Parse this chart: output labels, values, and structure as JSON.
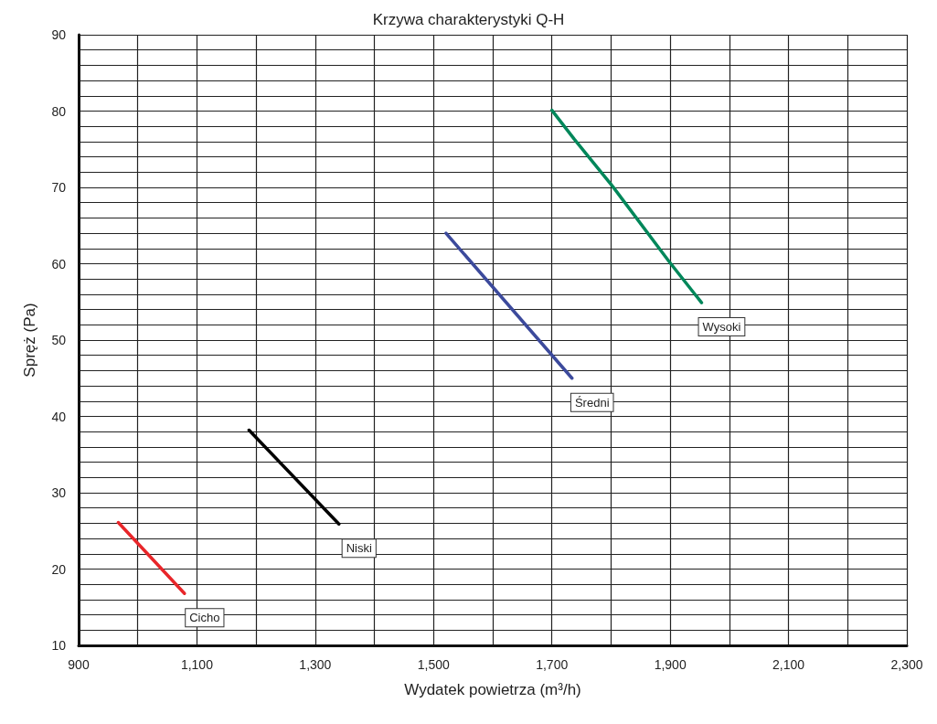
{
  "chart_data": {
    "type": "line",
    "title": "Krzywa charakterystyki Q-H",
    "xlabel": "Wydatek powietrza (m³/h)",
    "ylabel": "Spręż (Pa)",
    "xlim": [
      900,
      2300
    ],
    "ylim": [
      10,
      90
    ],
    "xticks": [
      900,
      {
        "value": 1000,
        "label": null
      },
      {
        "value": 1100,
        "label": "1,100"
      },
      {
        "value": 1200,
        "label": null
      },
      {
        "value": 1300,
        "label": "1,300"
      },
      {
        "value": 1400,
        "label": null
      },
      {
        "value": 1500,
        "label": "1,500"
      },
      {
        "value": 1600,
        "label": null
      },
      {
        "value": 1700,
        "label": "1,700"
      },
      {
        "value": 1800,
        "label": null
      },
      {
        "value": 1900,
        "label": "1,900"
      },
      {
        "value": 2000,
        "label": null
      },
      {
        "value": 2100,
        "label": "2,100"
      },
      {
        "value": 2200,
        "label": null
      },
      {
        "value": 2300,
        "label": "2,300"
      }
    ],
    "yticks": [
      10,
      {
        "value": 12,
        "label": null
      },
      {
        "value": 14,
        "label": null
      },
      {
        "value": 16,
        "label": null
      },
      {
        "value": 18,
        "label": null
      },
      20,
      {
        "value": 22,
        "label": null
      },
      {
        "value": 24,
        "label": null
      },
      {
        "value": 26,
        "label": null
      },
      {
        "value": 28,
        "label": null
      },
      30,
      {
        "value": 32,
        "label": null
      },
      {
        "value": 34,
        "label": null
      },
      {
        "value": 36,
        "label": null
      },
      {
        "value": 38,
        "label": null
      },
      40,
      {
        "value": 42,
        "label": null
      },
      {
        "value": 44,
        "label": null
      },
      {
        "value": 46,
        "label": null
      },
      {
        "value": 48,
        "label": null
      },
      50,
      {
        "value": 52,
        "label": null
      },
      {
        "value": 54,
        "label": null
      },
      {
        "value": 56,
        "label": null
      },
      {
        "value": 58,
        "label": null
      },
      60,
      {
        "value": 62,
        "label": null
      },
      {
        "value": 64,
        "label": null
      },
      {
        "value": 66,
        "label": null
      },
      {
        "value": 68,
        "label": null
      },
      70,
      {
        "value": 72,
        "label": null
      },
      {
        "value": 74,
        "label": null
      },
      {
        "value": 76,
        "label": null
      },
      {
        "value": 78,
        "label": null
      },
      80,
      {
        "value": 82,
        "label": null
      },
      {
        "value": 84,
        "label": null
      },
      {
        "value": 86,
        "label": null
      },
      {
        "value": 88,
        "label": null
      },
      90
    ],
    "grid": true,
    "legend": false,
    "marker": "none",
    "line_style": "solid",
    "series": [
      {
        "name": "Cicho",
        "color": "#e8262a",
        "x": [
          967,
          1079
        ],
        "values": [
          26.1,
          16.8
        ]
      },
      {
        "name": "Niski",
        "color": "#000000",
        "x": [
          1188,
          1340
        ],
        "values": [
          38.2,
          25.9
        ]
      },
      {
        "name": "Średni",
        "color": "#3c4a9c",
        "x": [
          1521,
          1734
        ],
        "values": [
          64.0,
          45.0
        ]
      },
      {
        "name": "Wysoki",
        "color": "#00875a",
        "x": [
          1700,
          1738,
          1803,
          1898,
          1953
        ],
        "values": [
          80.1,
          76.3,
          70.1,
          60.3,
          54.9
        ]
      }
    ]
  }
}
